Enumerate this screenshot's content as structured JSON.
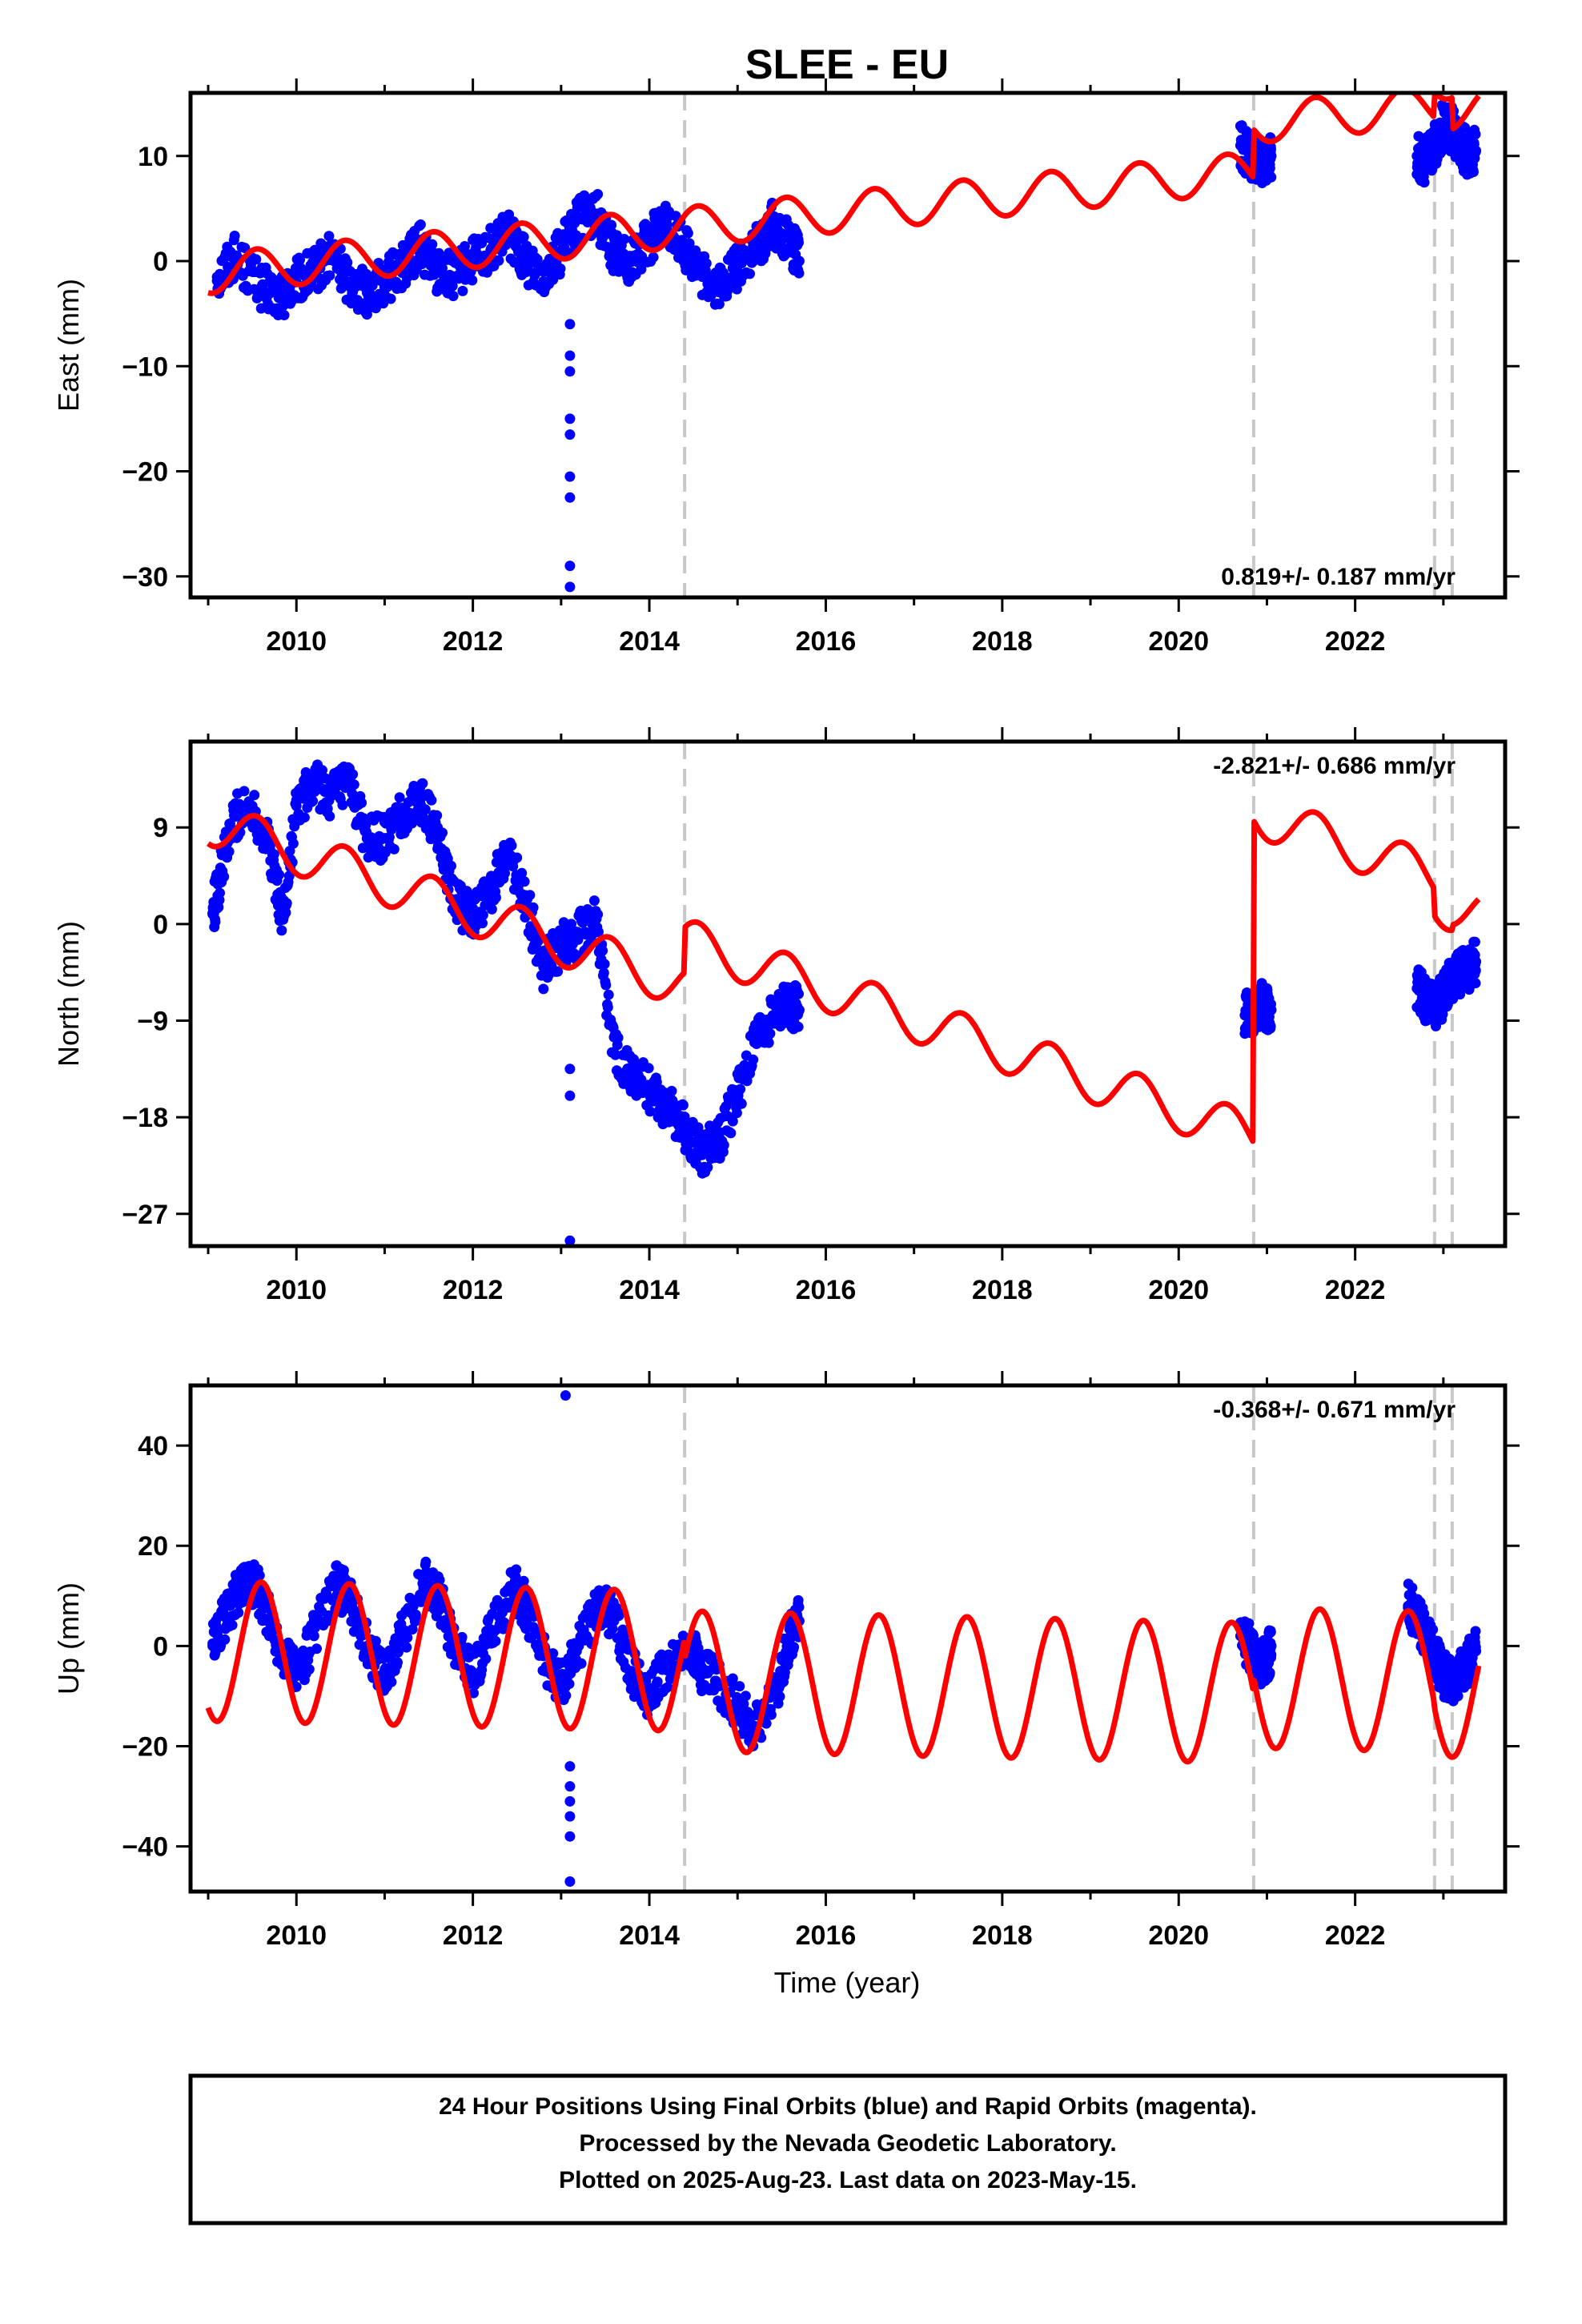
{
  "title": "SLEE - EU",
  "xlabel": "Time (year)",
  "footer": {
    "line1": "24 Hour Positions Using Final Orbits (blue) and Rapid Orbits (magenta).",
    "line2": "Processed by the Nevada Geodetic Laboratory.",
    "line3": "Plotted on 2025-Aug-23. Last data on 2023-May-15."
  },
  "colors": {
    "data_points": "#0000ff",
    "model_line": "#ff0000",
    "break_lines": "#c8c8c8"
  },
  "chart_data": [
    {
      "type": "scatter",
      "component": "east",
      "ylabel": "East (mm)",
      "rate_text": "0.819+/- 0.187 mm/yr",
      "rate_position": "bottom-right",
      "xlim": [
        2008.8,
        2023.7
      ],
      "ylim": [
        -32,
        16
      ],
      "xticks": [
        2010,
        2012,
        2014,
        2016,
        2018,
        2020,
        2022
      ],
      "xtick_labels": [
        "2010",
        "2012",
        "2014",
        "2016",
        "2018",
        "2020",
        "2022"
      ],
      "yticks": [
        10,
        0,
        -10,
        -20,
        -30
      ],
      "ytick_labels": [
        "10",
        "0",
        "−10",
        "−20",
        "−30"
      ],
      "breaks": [
        2014.4,
        2020.85,
        2022.9,
        2023.1
      ],
      "data_segments": [
        {
          "x": [
            2009.1,
            2009.3,
            2009.6,
            2009.8,
            2010.0,
            2010.2,
            2010.4,
            2010.6,
            2010.8,
            2011.0,
            2011.2,
            2011.4,
            2011.6,
            2011.8,
            2012.0,
            2012.2,
            2012.4,
            2012.6,
            2012.8,
            2013.0,
            2013.2,
            2013.4,
            2013.6,
            2013.8,
            2014.0,
            2014.2,
            2014.4,
            2014.6,
            2014.8,
            2015.0,
            2015.2,
            2015.4,
            2015.6,
            2015.7
          ],
          "y": [
            -1.5,
            0.5,
            -2.5,
            -3.5,
            -2.0,
            -1.0,
            0.5,
            -2.0,
            -3.0,
            -2.0,
            -0.5,
            1.5,
            -1.0,
            -1.5,
            0.0,
            1.0,
            2.5,
            0.0,
            -1.0,
            1.0,
            4.0,
            4.5,
            1.0,
            0.0,
            2.0,
            3.5,
            1.5,
            -1.5,
            -2.5,
            -0.5,
            1.0,
            3.5,
            2.0,
            0.0
          ]
        },
        {
          "x": [
            2020.7,
            2020.8,
            2020.9,
            2021.0,
            2021.05
          ],
          "y": [
            11.0,
            10.0,
            9.5,
            9.0,
            10.0
          ]
        },
        {
          "x": [
            2022.7,
            2022.8,
            2022.9,
            2023.0,
            2023.1,
            2023.2,
            2023.3,
            2023.37
          ],
          "y": [
            10.0,
            9.5,
            11.0,
            13.0,
            12.5,
            11.0,
            10.0,
            10.5
          ]
        }
      ],
      "outliers": {
        "x": [
          2013.1,
          2013.1,
          2013.1,
          2013.1,
          2013.1,
          2013.1,
          2013.1,
          2013.1,
          2013.1
        ],
        "y": [
          -6.0,
          -9.0,
          -10.5,
          -15.0,
          -16.5,
          -20.5,
          -22.5,
          -29.0,
          -31.0
        ]
      },
      "model": {
        "trend": 0.819,
        "annual_amp": 1.9,
        "annual_phase": 0.3,
        "offsets": [
          [
            2009.0,
            -1.2
          ],
          [
            2014.4,
            0.0
          ],
          [
            2020.85,
            4.6
          ],
          [
            2022.9,
            2.4
          ],
          [
            2023.1,
            -3.0
          ]
        ]
      }
    },
    {
      "type": "scatter",
      "component": "north",
      "ylabel": "North (mm)",
      "rate_text": "-2.821+/- 0.686 mm/yr",
      "rate_position": "top-right",
      "xlim": [
        2008.8,
        2023.7
      ],
      "ylim": [
        -30,
        17
      ],
      "xticks": [
        2010,
        2012,
        2014,
        2016,
        2018,
        2020,
        2022
      ],
      "xtick_labels": [
        "2010",
        "2012",
        "2014",
        "2016",
        "2018",
        "2020",
        "2022"
      ],
      "yticks": [
        9,
        0,
        -9,
        -18,
        -27
      ],
      "ytick_labels": [
        "9",
        "0",
        "−9",
        "−18",
        "−27"
      ],
      "breaks": [
        2014.4,
        2020.85,
        2022.9,
        2023.1
      ],
      "data_segments": [
        {
          "x": [
            2009.05,
            2009.15,
            2009.3,
            2009.5,
            2009.7,
            2009.85,
            2010.0,
            2010.2,
            2010.4,
            2010.6,
            2010.8,
            2011.0,
            2011.2,
            2011.4,
            2011.6,
            2011.8,
            2012.0,
            2012.2,
            2012.4,
            2012.6,
            2012.8,
            2013.0,
            2013.2,
            2013.4,
            2013.6,
            2013.8,
            2014.0,
            2014.2,
            2014.4,
            2014.6,
            2014.8,
            2015.0,
            2015.2,
            2015.4,
            2015.6,
            2015.7
          ],
          "y": [
            1.0,
            5.0,
            10.0,
            11.0,
            7.0,
            0.5,
            11.0,
            13.0,
            12.0,
            13.0,
            8.0,
            8.0,
            10.0,
            11.5,
            9.0,
            2.0,
            0.5,
            3.0,
            7.0,
            2.0,
            -4.0,
            -2.0,
            -1.0,
            0.5,
            -12.0,
            -14.0,
            -15.5,
            -17.0,
            -19.0,
            -21.5,
            -20.0,
            -16.0,
            -11.0,
            -8.5,
            -7.5,
            -8.0
          ]
        },
        {
          "x": [
            2020.75,
            2020.85,
            2020.95,
            2021.05
          ],
          "y": [
            -8.5,
            -8.0,
            -7.5,
            -8.0
          ]
        },
        {
          "x": [
            2022.7,
            2022.8,
            2022.9,
            2023.0,
            2023.1,
            2023.2,
            2023.3,
            2023.37
          ],
          "y": [
            -6.0,
            -7.0,
            -8.0,
            -6.5,
            -5.0,
            -4.5,
            -4.0,
            -3.5
          ]
        }
      ],
      "outliers": {
        "x": [
          2013.1,
          2013.1,
          2013.1
        ],
        "y": [
          -13.5,
          -16.0,
          -29.5
        ]
      },
      "model": {
        "trend": -2.821,
        "annual_amp": 2.1,
        "annual_phase": 0.3,
        "offsets": [
          [
            2009.0,
            9.5
          ],
          [
            2014.4,
            4.2
          ],
          [
            2020.85,
            30.0
          ],
          [
            2022.9,
            -2.5
          ],
          [
            2023.1,
            0.5
          ]
        ]
      }
    },
    {
      "type": "scatter",
      "component": "up",
      "ylabel": "Up (mm)",
      "rate_text": "-0.368+/- 0.671 mm/yr",
      "rate_position": "top-right",
      "xlim": [
        2008.8,
        2023.7
      ],
      "ylim": [
        -49,
        52
      ],
      "xticks": [
        2010,
        2012,
        2014,
        2016,
        2018,
        2020,
        2022
      ],
      "xtick_labels": [
        "2010",
        "2012",
        "2014",
        "2016",
        "2018",
        "2020",
        "2022"
      ],
      "yticks": [
        40,
        20,
        0,
        -20,
        -40
      ],
      "ytick_labels": [
        "40",
        "20",
        "0",
        "−20",
        "−40"
      ],
      "breaks": [
        2014.4,
        2020.85,
        2022.9,
        2023.1
      ],
      "data_segments": [
        {
          "x": [
            2009.05,
            2009.25,
            2009.45,
            2009.6,
            2009.8,
            2010.0,
            2010.2,
            2010.45,
            2010.6,
            2010.8,
            2011.0,
            2011.2,
            2011.45,
            2011.6,
            2011.8,
            2012.0,
            2012.2,
            2012.45,
            2012.6,
            2012.8,
            2013.0,
            2013.2,
            2013.45,
            2013.6,
            2013.8,
            2014.0,
            2014.2,
            2014.45,
            2014.6,
            2014.8,
            2015.0,
            2015.2,
            2015.45,
            2015.6,
            2015.7
          ],
          "y": [
            0.0,
            8.0,
            14.0,
            10.0,
            0.0,
            -6.0,
            2.0,
            12.0,
            10.0,
            0.0,
            -6.0,
            2.0,
            13.0,
            10.0,
            0.0,
            -6.0,
            2.0,
            12.0,
            8.0,
            -2.0,
            -8.0,
            0.0,
            8.0,
            5.0,
            -5.0,
            -10.0,
            -4.0,
            0.0,
            -5.0,
            -8.0,
            -12.0,
            -16.0,
            -8.0,
            2.0,
            5.0
          ]
        },
        {
          "x": [
            2020.7,
            2020.8,
            2020.9,
            2021.0,
            2021.05
          ],
          "y": [
            2.0,
            0.0,
            -4.0,
            -3.0,
            0.0
          ]
        },
        {
          "x": [
            2022.6,
            2022.7,
            2022.8,
            2022.9,
            2023.0,
            2023.1,
            2023.2,
            2023.3,
            2023.37
          ],
          "y": [
            8.0,
            6.0,
            2.0,
            -2.0,
            -6.0,
            -7.0,
            -5.0,
            -3.0,
            -1.0
          ]
        }
      ],
      "outliers": {
        "x": [
          2013.05,
          2013.1,
          2013.1,
          2013.1,
          2013.1,
          2013.1,
          2013.1
        ],
        "y": [
          50.0,
          -24.0,
          -28.0,
          -31.0,
          -34.0,
          -38.0,
          -47.0
        ]
      },
      "model": {
        "trend": -0.368,
        "annual_amp": 14.0,
        "annual_phase": 0.35,
        "offsets": [
          [
            2009.0,
            -1.0
          ],
          [
            2014.4,
            -4.0
          ],
          [
            2020.85,
            3.0
          ],
          [
            2022.9,
            -1.0
          ],
          [
            2023.1,
            0.0
          ]
        ]
      }
    }
  ]
}
